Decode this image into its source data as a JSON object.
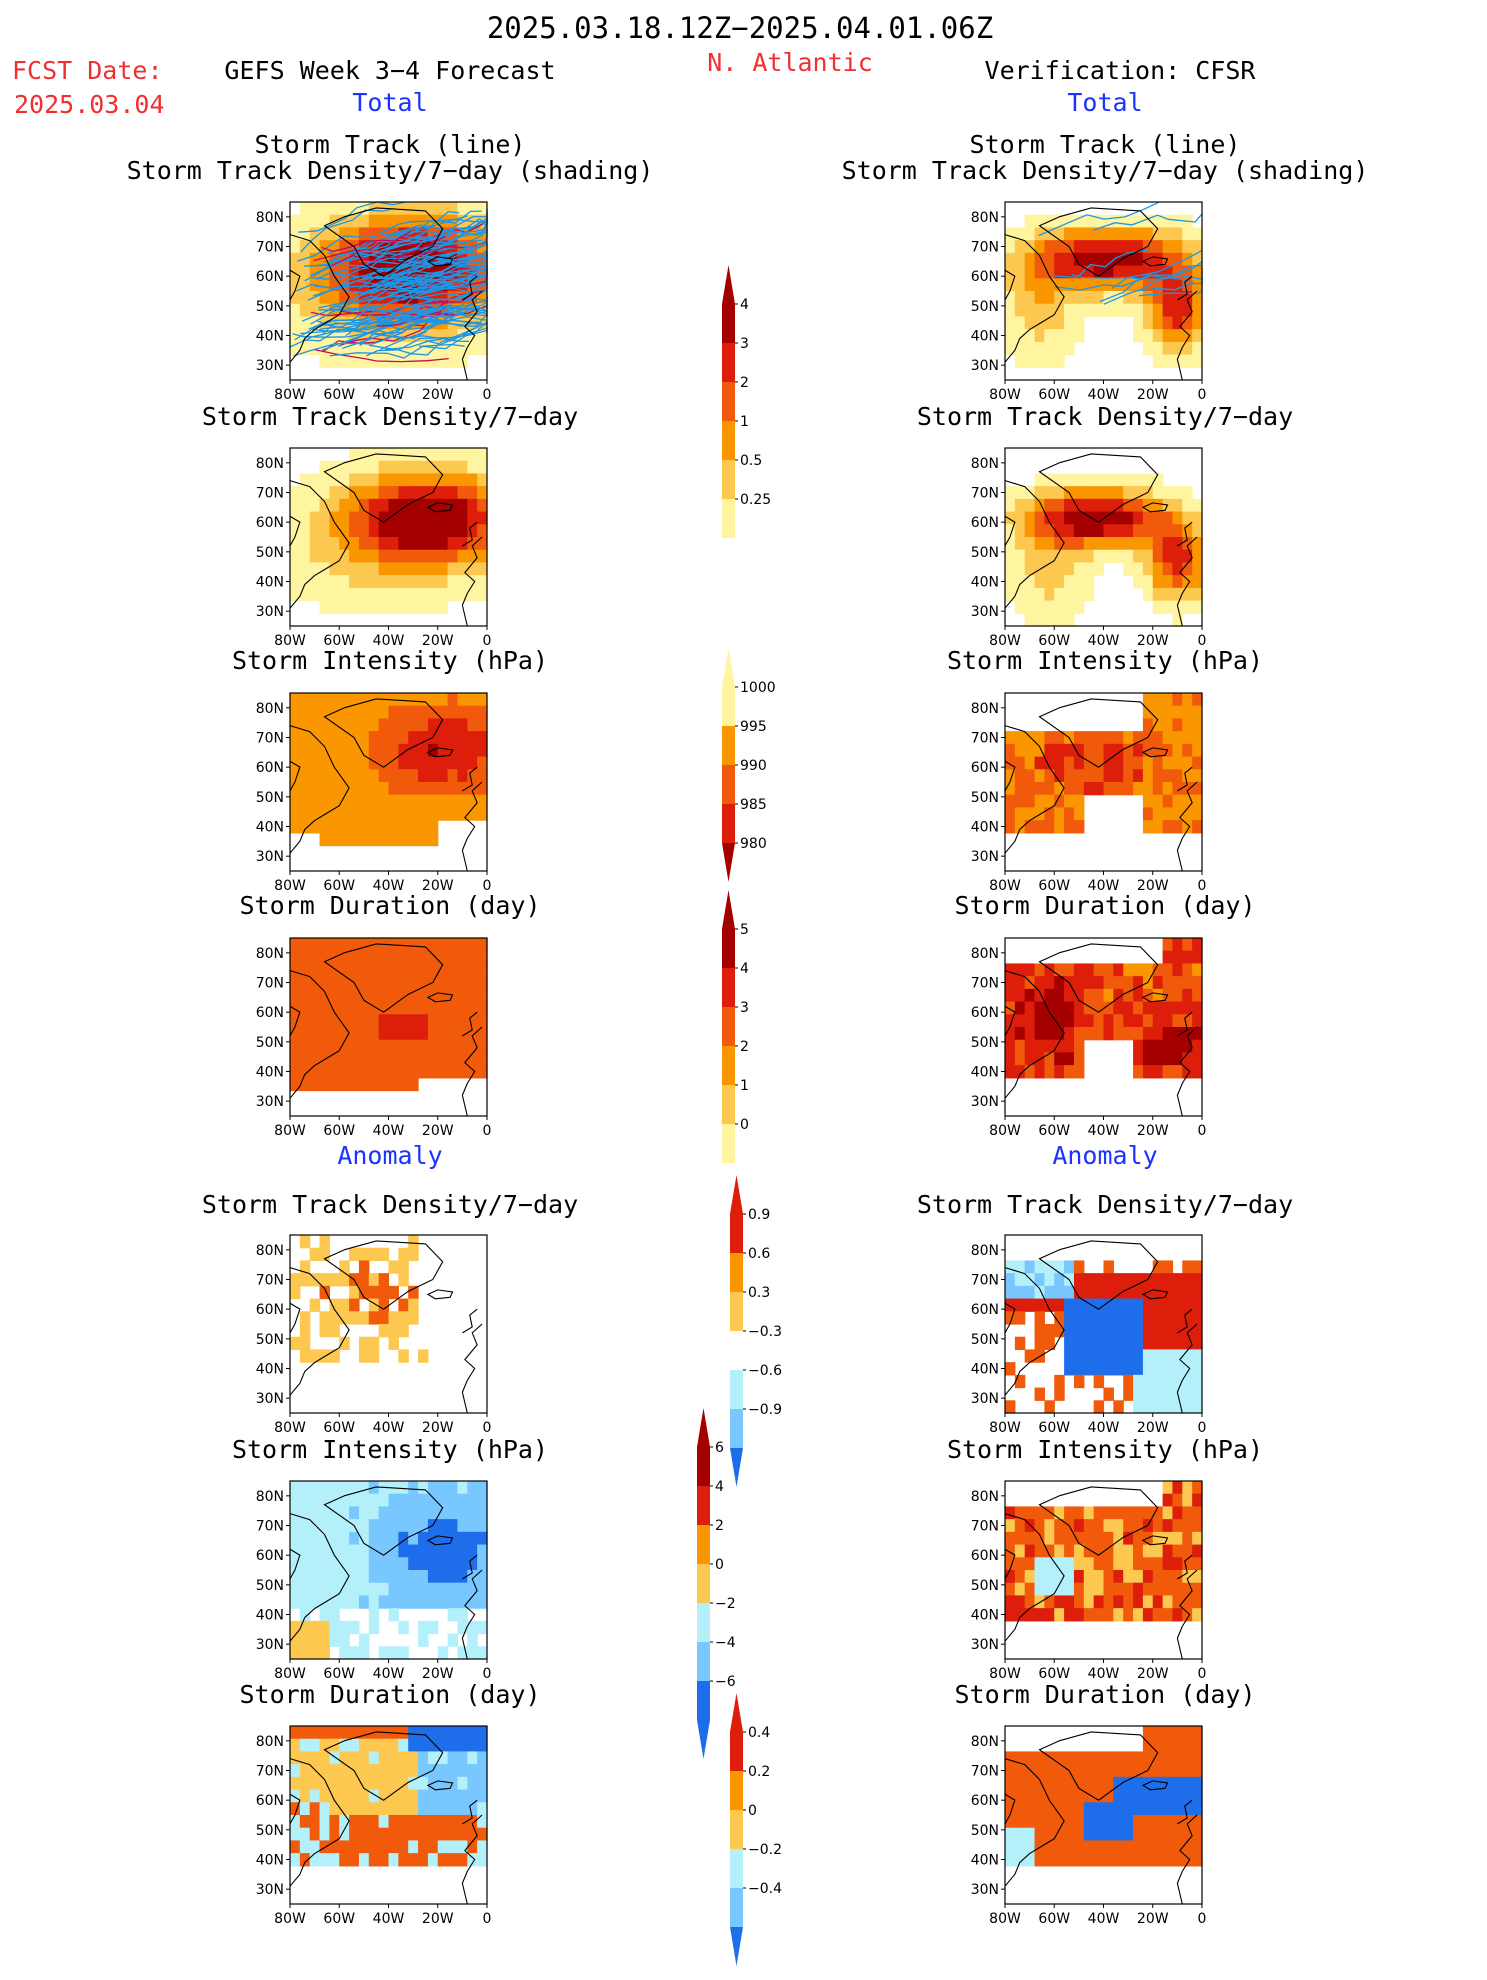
{
  "header": {
    "date_range": "2025.03.18.12Z−2025.04.01.06Z",
    "fcst_label": "FCST Date:",
    "fcst_date": "2025.03.04",
    "left_title": "GEFS Week 3−4 Forecast",
    "region": "N. Atlantic",
    "right_title": "Verification: CFSR",
    "total_label": "Total",
    "anomaly_label": "Anomaly"
  },
  "axes": {
    "lat_ticks": [
      "80N",
      "70N",
      "60N",
      "50N",
      "40N",
      "30N"
    ],
    "lon_ticks": [
      "80W",
      "60W",
      "40W",
      "20W",
      "0"
    ]
  },
  "panels": {
    "track_line_title": "Storm Track (line)",
    "track_shading_title": "Storm Track Density/7−day (shading)",
    "density_title": "Storm Track Density/7−day",
    "intensity_title": "Storm Intensity (hPa)",
    "duration_title": "Storm Duration (day)"
  },
  "colorbars": {
    "density_total": [
      "4",
      "3",
      "2",
      "1",
      "0.5",
      "0.25"
    ],
    "intensity_total": [
      "1000",
      "995",
      "990",
      "985",
      "980"
    ],
    "duration_total": [
      "5",
      "4",
      "3",
      "2",
      "1",
      "0"
    ],
    "density_anom": [
      "0.9",
      "0.6",
      "0.3",
      "−0.3",
      "−0.6",
      "−0.9"
    ],
    "intensity_anom": [
      "6",
      "4",
      "2",
      "0",
      "−2",
      "−4",
      "−6"
    ],
    "duration_anom": [
      "0.4",
      "0.2",
      "0",
      "−0.2",
      "−0.4"
    ]
  },
  "colors": {
    "red_text": "#f03030",
    "blue_text": "#1a33ff",
    "dark_red": "#a50000",
    "red": "#dc1e0a",
    "orange_red": "#f05a0a",
    "orange": "#fa9600",
    "light_orange": "#fcc850",
    "pale_yellow": "#fff5a0",
    "light_blue": "#b4f0fa",
    "sky_blue": "#78c8ff",
    "blue": "#1e6eeb",
    "track_line": "#1e96e6"
  }
}
